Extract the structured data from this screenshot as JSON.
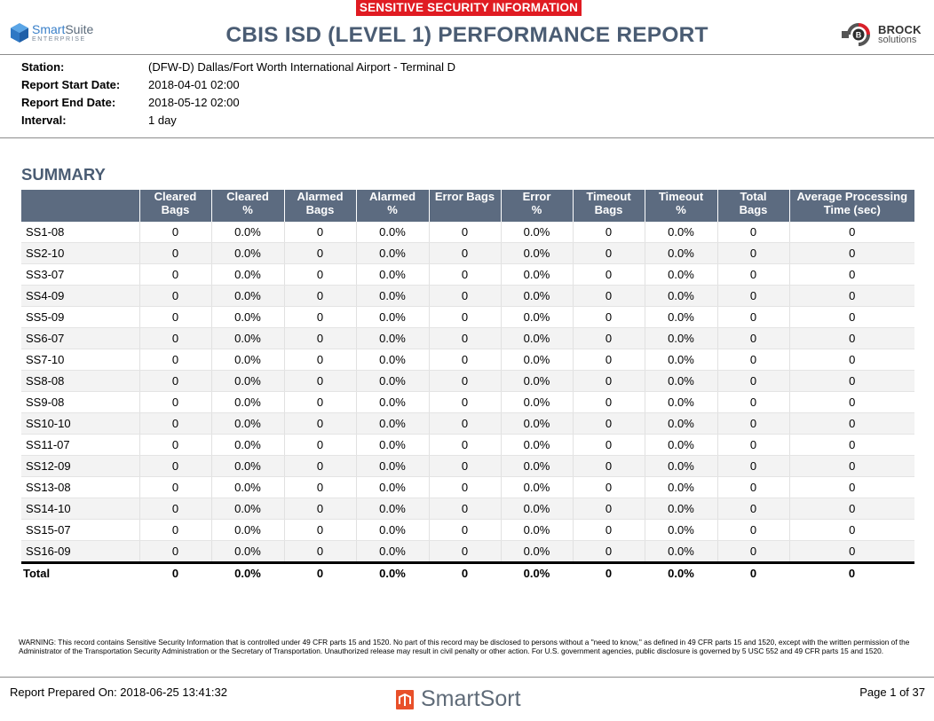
{
  "banner": "SENSITIVE SECURITY INFORMATION",
  "left_logo": {
    "brand_a": "Smart",
    "brand_b": "Suite",
    "sub": "ENTERPRISE"
  },
  "title": "CBIS ISD (LEVEL 1) PERFORMANCE REPORT",
  "right_logo": {
    "line1": "BROCK",
    "line2": "solutions"
  },
  "meta": [
    {
      "label": "Station:",
      "value": "(DFW-D) Dallas/Fort Worth International Airport - Terminal D"
    },
    {
      "label": "Report Start Date:",
      "value": "2018-04-01 02:00"
    },
    {
      "label": "Report End Date:",
      "value": "2018-05-12 02:00"
    },
    {
      "label": "Interval:",
      "value": "1 day"
    }
  ],
  "section_title": "SUMMARY",
  "table": {
    "columns": [
      [
        "",
        ""
      ],
      [
        "Cleared",
        "Bags"
      ],
      [
        "Cleared",
        "%"
      ],
      [
        "Alarmed",
        "Bags"
      ],
      [
        "Alarmed",
        "%"
      ],
      [
        "Error Bags",
        ""
      ],
      [
        "Error",
        "%"
      ],
      [
        "Timeout",
        "Bags"
      ],
      [
        "Timeout",
        "%"
      ],
      [
        "Total",
        "Bags"
      ],
      [
        "Average Processing",
        "Time (sec)"
      ]
    ],
    "rows": [
      [
        "SS1-08",
        "0",
        "0.0%",
        "0",
        "0.0%",
        "0",
        "0.0%",
        "0",
        "0.0%",
        "0",
        "0"
      ],
      [
        "SS2-10",
        "0",
        "0.0%",
        "0",
        "0.0%",
        "0",
        "0.0%",
        "0",
        "0.0%",
        "0",
        "0"
      ],
      [
        "SS3-07",
        "0",
        "0.0%",
        "0",
        "0.0%",
        "0",
        "0.0%",
        "0",
        "0.0%",
        "0",
        "0"
      ],
      [
        "SS4-09",
        "0",
        "0.0%",
        "0",
        "0.0%",
        "0",
        "0.0%",
        "0",
        "0.0%",
        "0",
        "0"
      ],
      [
        "SS5-09",
        "0",
        "0.0%",
        "0",
        "0.0%",
        "0",
        "0.0%",
        "0",
        "0.0%",
        "0",
        "0"
      ],
      [
        "SS6-07",
        "0",
        "0.0%",
        "0",
        "0.0%",
        "0",
        "0.0%",
        "0",
        "0.0%",
        "0",
        "0"
      ],
      [
        "SS7-10",
        "0",
        "0.0%",
        "0",
        "0.0%",
        "0",
        "0.0%",
        "0",
        "0.0%",
        "0",
        "0"
      ],
      [
        "SS8-08",
        "0",
        "0.0%",
        "0",
        "0.0%",
        "0",
        "0.0%",
        "0",
        "0.0%",
        "0",
        "0"
      ],
      [
        "SS9-08",
        "0",
        "0.0%",
        "0",
        "0.0%",
        "0",
        "0.0%",
        "0",
        "0.0%",
        "0",
        "0"
      ],
      [
        "SS10-10",
        "0",
        "0.0%",
        "0",
        "0.0%",
        "0",
        "0.0%",
        "0",
        "0.0%",
        "0",
        "0"
      ],
      [
        "SS11-07",
        "0",
        "0.0%",
        "0",
        "0.0%",
        "0",
        "0.0%",
        "0",
        "0.0%",
        "0",
        "0"
      ],
      [
        "SS12-09",
        "0",
        "0.0%",
        "0",
        "0.0%",
        "0",
        "0.0%",
        "0",
        "0.0%",
        "0",
        "0"
      ],
      [
        "SS13-08",
        "0",
        "0.0%",
        "0",
        "0.0%",
        "0",
        "0.0%",
        "0",
        "0.0%",
        "0",
        "0"
      ],
      [
        "SS14-10",
        "0",
        "0.0%",
        "0",
        "0.0%",
        "0",
        "0.0%",
        "0",
        "0.0%",
        "0",
        "0"
      ],
      [
        "SS15-07",
        "0",
        "0.0%",
        "0",
        "0.0%",
        "0",
        "0.0%",
        "0",
        "0.0%",
        "0",
        "0"
      ],
      [
        "SS16-09",
        "0",
        "0.0%",
        "0",
        "0.0%",
        "0",
        "0.0%",
        "0",
        "0.0%",
        "0",
        "0"
      ]
    ],
    "total": [
      "Total",
      "0",
      "0.0%",
      "0",
      "0.0%",
      "0",
      "0.0%",
      "0",
      "0.0%",
      "0",
      "0"
    ]
  },
  "warning": "WARNING: This record contains Sensitive Security Information that is controlled under 49 CFR parts 15 and 1520. No part of this record may be disclosed to persons without a \"need to know,\" as defined in 49 CFR parts 15 and 1520, except with the written permission of the Administrator of the Transportation Security Administration or the Secretary of Transportation. Unauthorized release may result in civil penalty or other action. For U.S. government agencies, public disclosure is governed by 5 USC 552 and 49 CFR parts 15 and 1520.",
  "footer": {
    "prepared": "Report Prepared On: 2018-06-25 13:41:32",
    "brand": "SmartSort",
    "page": "Page 1 of 37"
  },
  "colors": {
    "banner": "#e01b22",
    "title": "#4a5c73",
    "table_header": "#5c6b80",
    "smartsuite_blue": "#3a80c9",
    "smartsort_orange": "#e8502a"
  },
  "icons": [
    "smartsuite-cube-icon",
    "brock-logo-icon",
    "smartsort-icon"
  ]
}
